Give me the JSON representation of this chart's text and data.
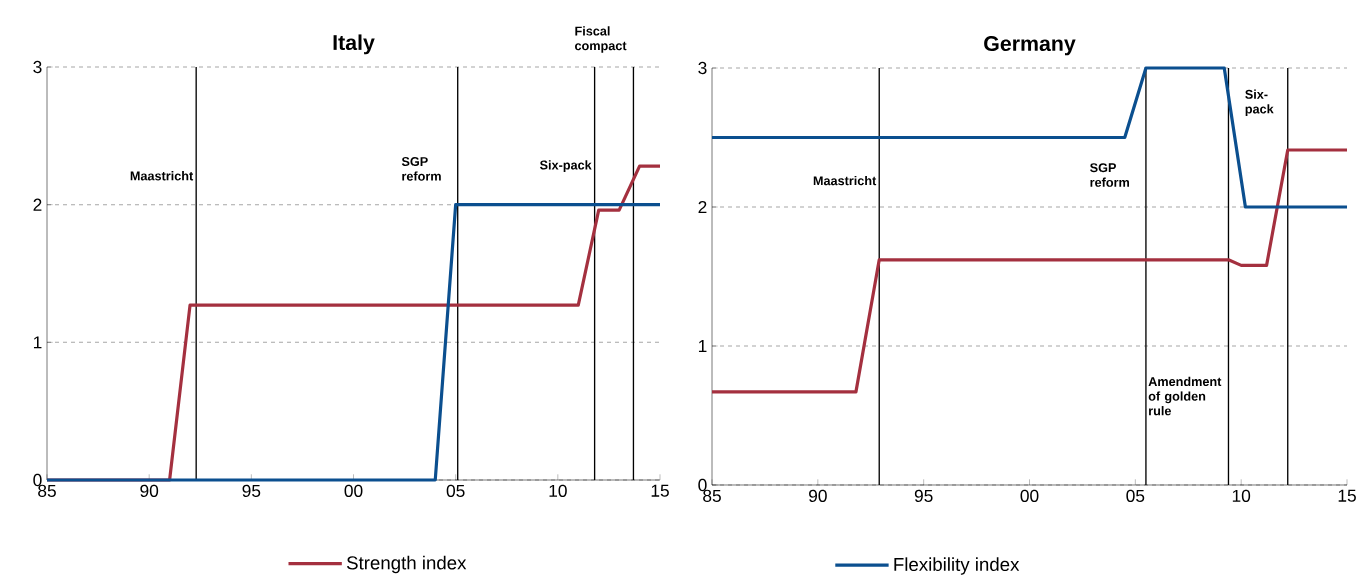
{
  "chart_data": [
    {
      "type": "line",
      "title": "Italy",
      "xlim": [
        1985,
        2015
      ],
      "ylim": [
        0,
        3
      ],
      "xticks": [
        {
          "value": 1985,
          "label": "85"
        },
        {
          "value": 1990,
          "label": "90"
        },
        {
          "value": 1995,
          "label": "95"
        },
        {
          "value": 2000,
          "label": "00"
        },
        {
          "value": 2005,
          "label": "05"
        },
        {
          "value": 2010,
          "label": "10"
        },
        {
          "value": 2015,
          "label": "15"
        }
      ],
      "yticks": [
        0,
        1,
        2,
        3
      ],
      "grid": "y",
      "legend": "bottom",
      "series": [
        {
          "name": "Strength index",
          "color": "#a4303f",
          "x": [
            1985,
            1991,
            1992,
            2011,
            2012,
            2013,
            2014,
            2015
          ],
          "values": [
            0,
            0,
            1.27,
            1.27,
            1.96,
            1.96,
            2.28,
            2.28
          ]
        },
        {
          "color": "#0b4f8f",
          "x": [
            1985,
            2004,
            2005,
            2015
          ],
          "values": [
            0,
            0,
            2,
            2
          ]
        }
      ],
      "ref_lines": [
        {
          "axis": "x",
          "value": 1992.3,
          "label": "Maastricht"
        },
        {
          "axis": "x",
          "value": 2005.1,
          "label": "SGP reform"
        },
        {
          "axis": "x",
          "value": 2011.8,
          "label": "Six-pack"
        },
        {
          "axis": "x",
          "value": 2013.7,
          "label": "Fiscal compact"
        }
      ]
    },
    {
      "type": "line",
      "title": "Germany",
      "xlim": [
        1985,
        2015
      ],
      "ylim": [
        0,
        3
      ],
      "xticks": [
        {
          "value": 1985,
          "label": "85"
        },
        {
          "value": 1990,
          "label": "90"
        },
        {
          "value": 1995,
          "label": "95"
        },
        {
          "value": 2000,
          "label": "00"
        },
        {
          "value": 2005,
          "label": "05"
        },
        {
          "value": 2010,
          "label": "10"
        },
        {
          "value": 2015,
          "label": "15"
        }
      ],
      "yticks": [
        0,
        1,
        2,
        3
      ],
      "grid": "y",
      "legend": "bottom",
      "series": [
        {
          "color": "#a4303f",
          "x": [
            1985,
            1991.8,
            1992.9,
            2009.4,
            2010,
            2011.2,
            2012.2,
            2015
          ],
          "values": [
            0.67,
            0.67,
            1.62,
            1.62,
            1.58,
            1.58,
            2.41,
            2.41
          ]
        },
        {
          "name": "Flexibility index",
          "color": "#0b4f8f",
          "x": [
            1985,
            2004.5,
            2005.5,
            2009.2,
            2010.2,
            2015
          ],
          "values": [
            2.5,
            2.5,
            3,
            3,
            2,
            2
          ]
        }
      ],
      "ref_lines": [
        {
          "axis": "x",
          "value": 1992.9,
          "label": "Maastricht"
        },
        {
          "axis": "x",
          "value": 2005.5,
          "label": "SGP reform"
        },
        {
          "axis": "x",
          "value": 2009.4,
          "label": "Amendment of golden rule"
        },
        {
          "axis": "x",
          "value": 2012.2,
          "label": "Six-pack"
        }
      ]
    }
  ]
}
